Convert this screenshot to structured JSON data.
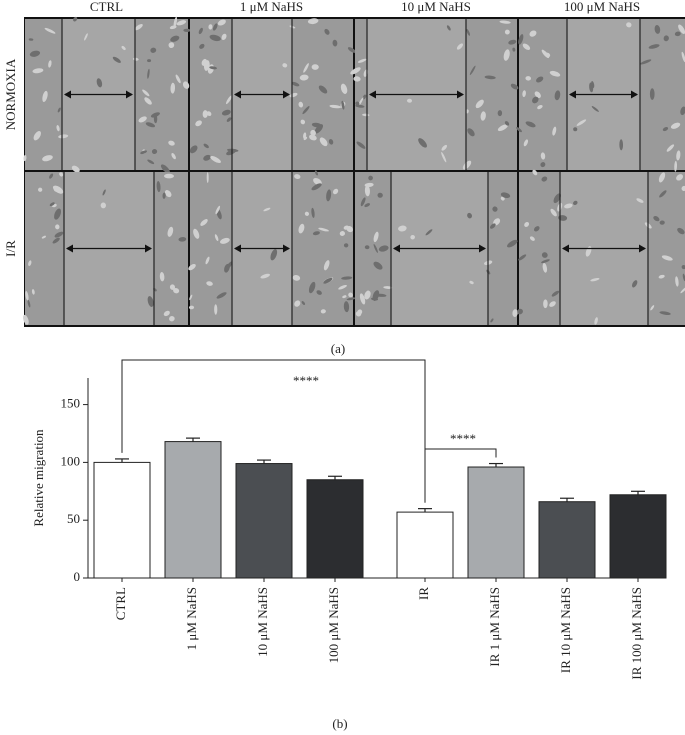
{
  "panel_a": {
    "columns": [
      "CTRL",
      "1 μM NaHS",
      "10 μM NaHS",
      "100 μM NaHS"
    ],
    "rows": [
      "NORMOXIA",
      "I/R"
    ],
    "label": "(a)"
  },
  "chart_data": {
    "type": "bar",
    "ylabel": "Relative migration",
    "categories": [
      "CTRL",
      "1 μM NaHS",
      "10 μM NaHS",
      "100 μM NaHS",
      "IR",
      "IR 1 μM NaHS",
      "IR 10 μM NaHS",
      "IR 100 μM NaHS"
    ],
    "values": [
      100,
      118,
      99,
      85,
      57,
      96,
      66,
      72
    ],
    "errors": [
      3,
      3,
      3,
      3,
      3,
      3,
      3,
      3
    ],
    "colors": [
      "#ffffff",
      "#a7aaad",
      "#4b4e52",
      "#2c2d30",
      "#ffffff",
      "#a7aaad",
      "#4b4e52",
      "#2c2d30"
    ],
    "ylim": [
      0,
      173
    ],
    "yticks": [
      0,
      50,
      100,
      150
    ],
    "annotations": [
      "****",
      "****"
    ],
    "label": "(b)"
  }
}
